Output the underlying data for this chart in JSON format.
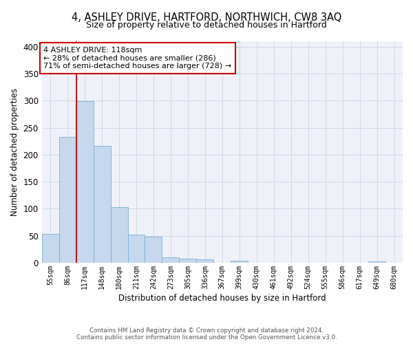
{
  "title": "4, ASHLEY DRIVE, HARTFORD, NORTHWICH, CW8 3AQ",
  "subtitle": "Size of property relative to detached houses in Hartford",
  "xlabel": "Distribution of detached houses by size in Hartford",
  "ylabel": "Number of detached properties",
  "bar_labels": [
    "55sqm",
    "86sqm",
    "117sqm",
    "148sqm",
    "180sqm",
    "211sqm",
    "242sqm",
    "273sqm",
    "305sqm",
    "336sqm",
    "367sqm",
    "399sqm",
    "430sqm",
    "461sqm",
    "492sqm",
    "524sqm",
    "555sqm",
    "586sqm",
    "617sqm",
    "649sqm",
    "680sqm"
  ],
  "bar_values": [
    54,
    233,
    299,
    216,
    103,
    52,
    49,
    10,
    8,
    6,
    0,
    4,
    0,
    0,
    0,
    0,
    0,
    0,
    0,
    3,
    0
  ],
  "bar_color": "#c5d8ed",
  "bar_edgecolor": "#7bafd4",
  "ylim": [
    0,
    410
  ],
  "yticks": [
    0,
    50,
    100,
    150,
    200,
    250,
    300,
    350,
    400
  ],
  "vline_color": "#cc0000",
  "annotation_title": "4 ASHLEY DRIVE: 118sqm",
  "annotation_line1": "← 28% of detached houses are smaller (286)",
  "annotation_line2": "71% of semi-detached houses are larger (728) →",
  "annotation_box_color": "#cc0000",
  "grid_color": "#d0d8e8",
  "background_color": "#eef2f8",
  "footer_line1": "Contains HM Land Registry data © Crown copyright and database right 2024.",
  "footer_line2": "Contains public sector information licensed under the Open Government Licence v3.0."
}
